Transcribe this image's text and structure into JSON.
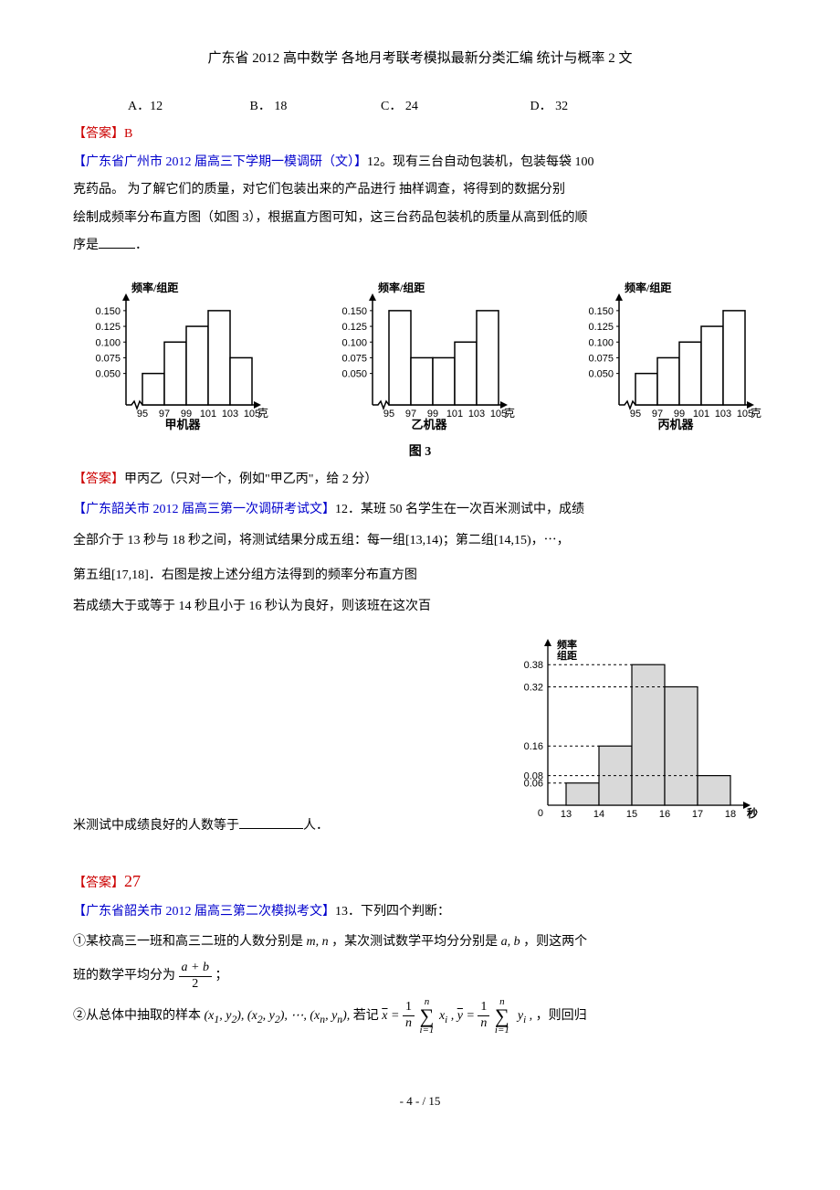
{
  "title": "广东省 2012 高中数学 各地月考联考模拟最新分类汇编 统计与概率 2 文",
  "options": {
    "A": "A．12",
    "B": "B． 18",
    "C": "C． 24",
    "D": "D． 32"
  },
  "ans1_label": "【答案】",
  "ans1_val": "B",
  "src1": "【广东省广州市 2012 届高三下学期一模调研（文）】",
  "q12_a": "12。现有三台自动包装机，包装每袋 100",
  "q12_b": "克药品。  为了解它们的质量，对它们包装出来的产品进行  抽样调查，将得到的数据分别",
  "q12_c": "绘制成频率分布直方图（如图 3），根据直方图可知，这三台药品包装机的质量从高到低的顺",
  "q12_d": "序是",
  "q12_e": "．",
  "histo_common": {
    "y_label": "频率/组距",
    "y_ticks": [
      "0.050",
      "0.075",
      "0.100",
      "0.125",
      "0.150"
    ],
    "x_ticks": [
      "95",
      "97",
      "99",
      "101",
      "103",
      "105"
    ],
    "x_unit": "克",
    "bar_color": "#ffffff",
    "border_color": "#000000"
  },
  "histo1": {
    "name": "甲机器",
    "values": [
      0.05,
      0.1,
      0.125,
      0.15,
      0.075
    ]
  },
  "histo2": {
    "name": "乙机器",
    "values": [
      0.15,
      0.075,
      0.075,
      0.1,
      0.15
    ]
  },
  "histo3": {
    "name": "丙机器",
    "values": [
      0.05,
      0.075,
      0.1,
      0.125,
      0.15
    ]
  },
  "fig3_caption": "图 3",
  "ans2_label": "【答案】",
  "ans2_val": "甲丙乙（只对一个，例如\"甲乙丙\"，给 2 分）",
  "src2": "【广东韶关市 2012 届高三第一次调研考试文】",
  "q12b_a": "12．某班 50 名学生在一次百米测试中，成绩",
  "q12b_b": "全部介于 13 秒与 18 秒之间，将测试结果分成五组：每一组",
  "q12b_c": "；第二组",
  "q12b_d": "，⋯，",
  "q12b_e": "第五组",
  "q12b_f": "．右图是按上述分组方法得到的频率分布直方图",
  "q12b_g": "若成绩大于或等于 14 秒且小于 16 秒认为良好，则该班在这次百",
  "q12b_h": "米测试中成绩良好的人数等于",
  "q12b_i": "人．",
  "interval1": "[13,14)",
  "interval2": "[14,15)",
  "interval5": "[17,18]",
  "histo4": {
    "y_label": "频率\n组距",
    "y_ticks": [
      "0.06",
      "0.08",
      "0.16",
      "0.32",
      "0.38"
    ],
    "y_tick_pos": [
      0.06,
      0.08,
      0.16,
      0.32,
      0.38
    ],
    "x_ticks": [
      "13",
      "14",
      "15",
      "16",
      "17",
      "18"
    ],
    "x_unit": "秒",
    "values": [
      0.06,
      0.16,
      0.38,
      0.32,
      0.08
    ],
    "bar_fill": "#d9d9d9",
    "border_color": "#000000",
    "ymax": 0.42
  },
  "ans3_label": "【答案】",
  "ans3_val": "27",
  "src3": "【广东省韶关市 2012 届高三第二次模拟考文】",
  "q13_a": "13．下列四个判断：",
  "q13_b": "①某校高三一班和高三二班的人数分别是",
  "q13_mn": "m, n",
  "q13_c": "，某次测试数学平均分分别是",
  "q13_ab": "a, b",
  "q13_d": "，则这两个",
  "q13_e": "班的数学平均分为",
  "q13_f": "；",
  "frac_num": "a + b",
  "frac_den": "2",
  "q13_g": "②从总体中抽取的样本",
  "q13_samples": "(x₁, y₂), (x₂, y₂), ⋯, (xₙ, yₙ),",
  "q13_h": "若记",
  "q13_i": "，则回归",
  "footer": "- 4 -  / 15"
}
